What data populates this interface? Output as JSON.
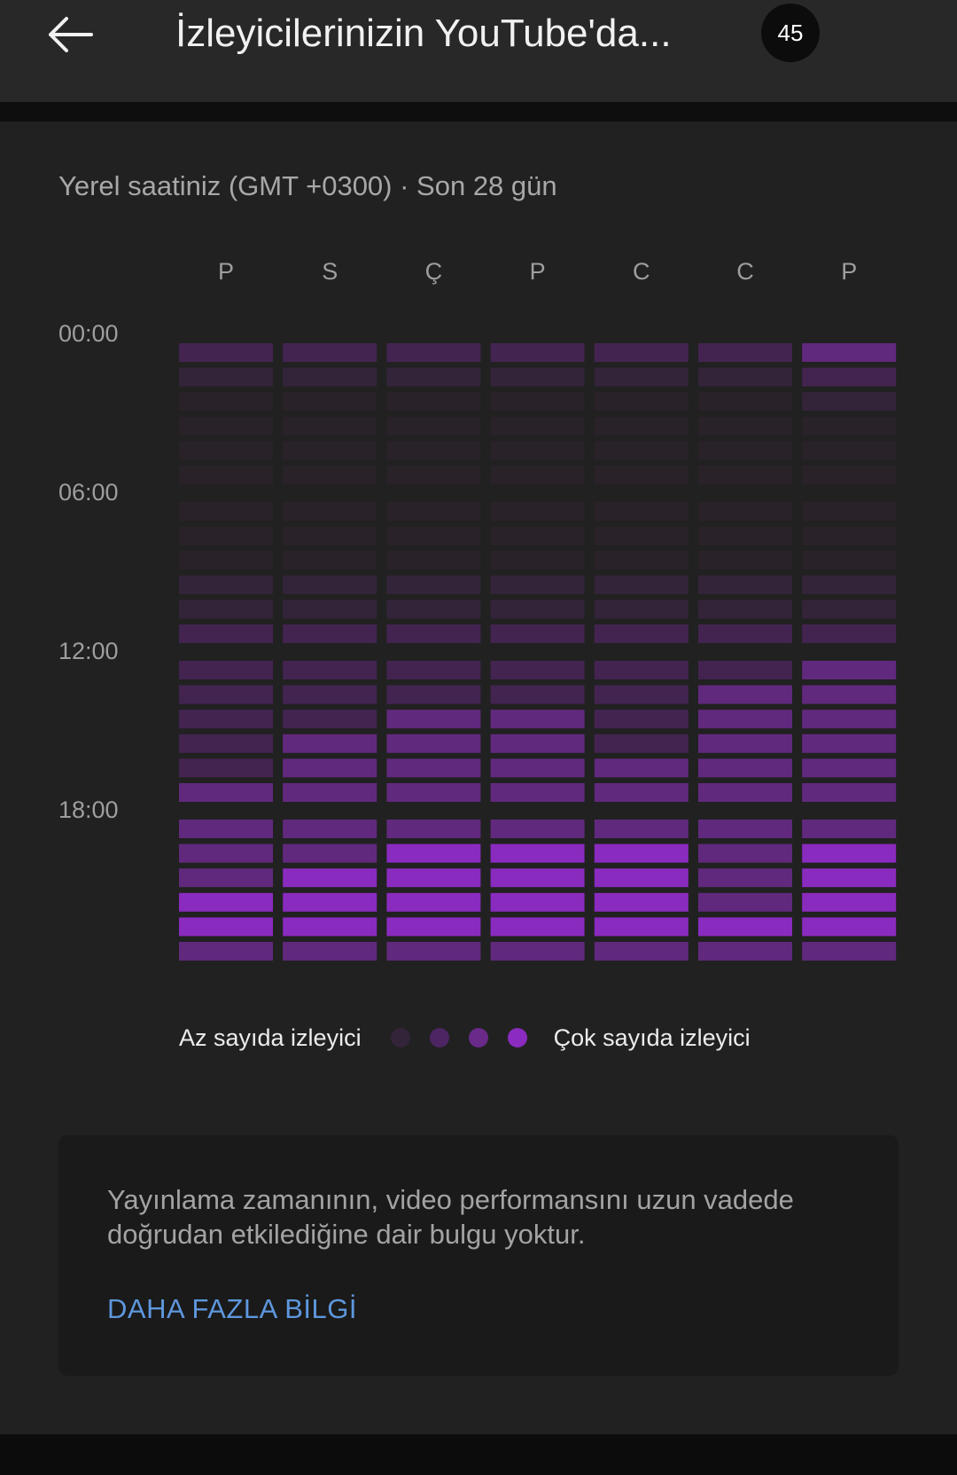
{
  "header": {
    "title": "İzleyicilerinizin YouTube'da...",
    "badge": "45"
  },
  "subtitle": "Yerel saatiniz (GMT +0300) · Son 28 gün",
  "chart_data": {
    "type": "heatmap",
    "title": "",
    "days": [
      "P",
      "S",
      "Ç",
      "P",
      "C",
      "C",
      "P"
    ],
    "time_labels": [
      "00:00",
      "06:00",
      "12:00",
      "18:00"
    ],
    "hours": [
      0,
      1,
      2,
      3,
      4,
      5,
      6,
      7,
      8,
      9,
      10,
      11,
      12,
      13,
      14,
      15,
      16,
      17,
      18,
      19,
      20,
      21,
      22,
      23
    ],
    "values": [
      [
        2,
        2,
        2,
        2,
        2,
        2,
        3
      ],
      [
        1,
        1,
        1,
        1,
        1,
        1,
        2
      ],
      [
        0,
        0,
        0,
        0,
        0,
        0,
        1
      ],
      [
        0,
        0,
        0,
        0,
        0,
        0,
        0
      ],
      [
        0,
        0,
        0,
        0,
        0,
        0,
        0
      ],
      [
        0,
        0,
        0,
        0,
        0,
        0,
        0
      ],
      [
        0,
        0,
        0,
        0,
        0,
        0,
        0
      ],
      [
        0,
        0,
        0,
        0,
        0,
        0,
        0
      ],
      [
        0,
        0,
        0,
        0,
        0,
        0,
        0
      ],
      [
        1,
        1,
        1,
        1,
        1,
        1,
        1
      ],
      [
        1,
        1,
        1,
        1,
        1,
        1,
        1
      ],
      [
        2,
        2,
        2,
        2,
        2,
        2,
        2
      ],
      [
        2,
        2,
        2,
        2,
        2,
        2,
        3
      ],
      [
        2,
        2,
        2,
        2,
        2,
        3,
        3
      ],
      [
        2,
        2,
        3,
        3,
        2,
        3,
        3
      ],
      [
        2,
        3,
        3,
        3,
        2,
        3,
        3
      ],
      [
        2,
        3,
        3,
        3,
        3,
        3,
        3
      ],
      [
        3,
        3,
        3,
        3,
        3,
        3,
        3
      ],
      [
        3,
        3,
        3,
        3,
        3,
        3,
        3
      ],
      [
        3,
        3,
        4,
        4,
        4,
        3,
        4
      ],
      [
        3,
        4,
        4,
        4,
        4,
        3,
        4
      ],
      [
        4,
        4,
        4,
        4,
        4,
        3,
        4
      ],
      [
        4,
        4,
        4,
        4,
        4,
        4,
        4
      ],
      [
        3,
        3,
        3,
        3,
        3,
        3,
        3
      ]
    ],
    "scale_colors": [
      "#2a2229",
      "#33243a",
      "#432451",
      "#61297d",
      "#8a2bbf"
    ],
    "legend": {
      "low": "Az sayıda izleyici",
      "high": "Çok sayıda izleyici",
      "dot_colors": [
        "#33243a",
        "#4c2562",
        "#6a2a89",
        "#8b2bbf"
      ]
    }
  },
  "info_card": {
    "text": "Yayınlama zamanının, video performansını uzun vadede doğrudan etkilediğine dair bulgu yoktur.",
    "link": "DAHA FAZLA BİLGİ"
  },
  "icons": {
    "back": "back-arrow-icon"
  }
}
